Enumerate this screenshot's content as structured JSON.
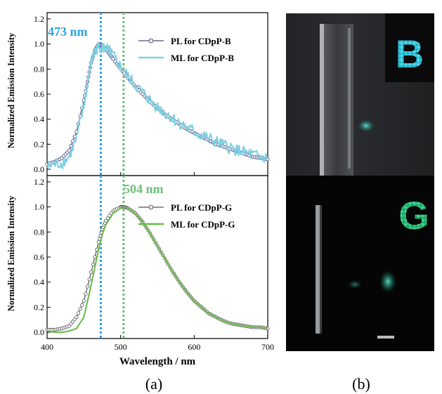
{
  "panel_labels": {
    "a": "(a)",
    "b": "(b)"
  },
  "photo": {
    "letter_top": "B",
    "letter_bottom": "G",
    "letter_top_color": "#3cc7dd",
    "letter_bottom_color": "#2fc57a"
  },
  "chart_data": [
    {
      "type": "line",
      "xlabel": "Wavelength / nm",
      "ylabel": "Normalized Emission Intensity",
      "xlim": [
        400,
        700
      ],
      "ylim": [
        -0.05,
        1.25
      ],
      "xticks": [
        "400",
        "500",
        "600",
        "700"
      ],
      "yticks": [
        "0.0",
        "0.2",
        "0.4",
        "0.6",
        "0.8",
        "1.0",
        "1.2"
      ],
      "peak_line": {
        "x": 473,
        "label": "473 nm",
        "color": "#29a3de"
      },
      "peak_line_2": {
        "x": 504,
        "color": "#6dbf7a"
      },
      "legend_position": "top-right",
      "series": [
        {
          "name": "PL  for CDpP-B",
          "color": "#4a4880",
          "marker": "circle",
          "x": [
            400,
            410,
            420,
            430,
            440,
            450,
            455,
            460,
            465,
            470,
            475,
            480,
            485,
            490,
            500,
            510,
            520,
            530,
            540,
            550,
            560,
            570,
            580,
            590,
            600,
            610,
            620,
            630,
            640,
            650,
            660,
            670,
            680,
            690,
            700
          ],
          "y": [
            0.04,
            0.06,
            0.09,
            0.15,
            0.3,
            0.55,
            0.7,
            0.85,
            0.95,
            1.0,
            0.99,
            0.96,
            0.92,
            0.88,
            0.8,
            0.73,
            0.66,
            0.6,
            0.54,
            0.49,
            0.44,
            0.4,
            0.36,
            0.32,
            0.29,
            0.26,
            0.23,
            0.2,
            0.18,
            0.16,
            0.14,
            0.12,
            0.1,
            0.09,
            0.08
          ]
        },
        {
          "name": "ML for CDpP-B",
          "color": "#7fcfe0",
          "x": [
            400,
            410,
            420,
            430,
            440,
            450,
            455,
            460,
            465,
            470,
            475,
            480,
            485,
            490,
            500,
            510,
            520,
            530,
            540,
            550,
            560,
            570,
            580,
            590,
            600,
            610,
            620,
            630,
            640,
            650,
            660,
            670,
            680,
            690,
            700
          ],
          "y": [
            0.02,
            0.04,
            0.05,
            0.1,
            0.24,
            0.5,
            0.68,
            0.85,
            0.94,
            0.98,
            0.97,
            0.96,
            0.94,
            0.9,
            0.82,
            0.74,
            0.67,
            0.61,
            0.55,
            0.5,
            0.45,
            0.41,
            0.37,
            0.33,
            0.3,
            0.27,
            0.24,
            0.22,
            0.19,
            0.17,
            0.15,
            0.13,
            0.11,
            0.1,
            0.08
          ]
        }
      ]
    },
    {
      "type": "line",
      "xlabel": "Wavelength / nm",
      "ylabel": "Normalized Emission Intensity",
      "xlim": [
        400,
        700
      ],
      "ylim": [
        -0.05,
        1.25
      ],
      "xticks": [
        "400",
        "500",
        "600",
        "700"
      ],
      "yticks": [
        "0.0",
        "0.2",
        "0.4",
        "0.6",
        "0.8",
        "1.0",
        "1.2"
      ],
      "peak_line": {
        "x": 504,
        "label": "504 nm",
        "color": "#6dbf7a"
      },
      "peak_line_2": {
        "x": 473,
        "color": "#29a3de"
      },
      "legend_position": "top-right",
      "series": [
        {
          "name": "PL  for CDpP-G",
          "color": "#555555",
          "marker": "circle",
          "x": [
            400,
            410,
            420,
            430,
            440,
            450,
            460,
            470,
            475,
            480,
            490,
            500,
            505,
            510,
            520,
            530,
            540,
            550,
            560,
            570,
            580,
            590,
            600,
            610,
            620,
            630,
            640,
            650,
            660,
            670,
            680,
            690,
            700
          ],
          "y": [
            0.02,
            0.02,
            0.03,
            0.05,
            0.12,
            0.25,
            0.48,
            0.72,
            0.82,
            0.89,
            0.97,
            1.0,
            1.0,
            0.99,
            0.95,
            0.88,
            0.79,
            0.69,
            0.59,
            0.49,
            0.4,
            0.32,
            0.25,
            0.2,
            0.15,
            0.12,
            0.09,
            0.07,
            0.06,
            0.05,
            0.04,
            0.04,
            0.03
          ]
        },
        {
          "name": "ML for CDpP-G",
          "color": "#66bb44",
          "x": [
            400,
            410,
            420,
            430,
            440,
            450,
            460,
            470,
            475,
            480,
            490,
            500,
            505,
            510,
            520,
            530,
            540,
            550,
            560,
            570,
            580,
            590,
            600,
            610,
            620,
            630,
            640,
            650,
            660,
            670,
            680,
            690,
            700
          ],
          "y": [
            0.01,
            0.0,
            0.0,
            0.01,
            0.03,
            0.12,
            0.38,
            0.66,
            0.78,
            0.86,
            0.95,
            0.99,
            1.0,
            0.99,
            0.95,
            0.88,
            0.79,
            0.69,
            0.59,
            0.49,
            0.4,
            0.32,
            0.25,
            0.2,
            0.15,
            0.12,
            0.09,
            0.07,
            0.06,
            0.05,
            0.04,
            0.04,
            0.03
          ]
        }
      ]
    }
  ]
}
